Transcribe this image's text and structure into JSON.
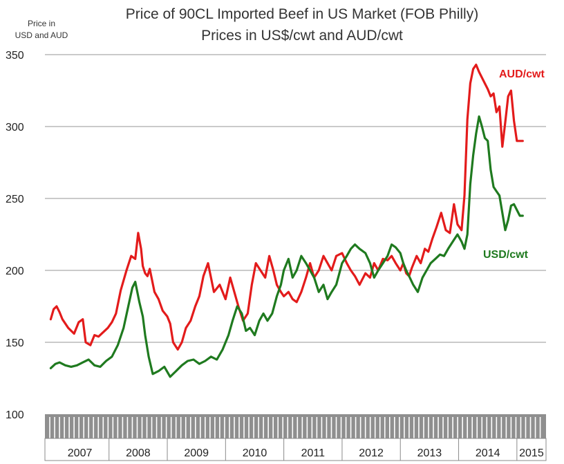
{
  "chart_data": {
    "type": "line",
    "title": "Price of 90CL Imported Beef in US Market (FOB Philly)",
    "subtitle": "Prices in US$/cwt and AUD/cwt",
    "ylabel_line1": "Price in",
    "ylabel_line2": "USD and AUD",
    "ylim": [
      100,
      350
    ],
    "yticks": [
      "100",
      "150",
      "200",
      "250",
      "300",
      "350"
    ],
    "xlim": [
      2006.9,
      2015.5
    ],
    "xtick_labels": [
      "2007",
      "2008",
      "2009",
      "2010",
      "2011",
      "2012",
      "2013",
      "2014",
      "2015"
    ],
    "grid": true,
    "colors": {
      "aud": "#e31b1b",
      "usd": "#1f7a1f",
      "grid": "#aaaaaa",
      "band": "#8f8f8f"
    },
    "series": [
      {
        "name": "AUD/cwt",
        "key": "aud",
        "x": [
          2007.0,
          2007.05,
          2007.1,
          2007.15,
          2007.2,
          2007.3,
          2007.4,
          2007.48,
          2007.55,
          2007.6,
          2007.68,
          2007.75,
          2007.82,
          2007.9,
          2007.98,
          2008.05,
          2008.12,
          2008.2,
          2008.3,
          2008.38,
          2008.45,
          2008.5,
          2008.55,
          2008.58,
          2008.62,
          2008.66,
          2008.7,
          2008.78,
          2008.85,
          2008.92,
          2009.0,
          2009.05,
          2009.1,
          2009.18,
          2009.25,
          2009.32,
          2009.4,
          2009.48,
          2009.55,
          2009.62,
          2009.7,
          2009.8,
          2009.9,
          2010.0,
          2010.08,
          2010.15,
          2010.22,
          2010.3,
          2010.38,
          2010.45,
          2010.52,
          2010.6,
          2010.68,
          2010.75,
          2010.82,
          2010.88,
          2010.95,
          2011.0,
          2011.08,
          2011.15,
          2011.22,
          2011.3,
          2011.38,
          2011.45,
          2011.52,
          2011.6,
          2011.68,
          2011.75,
          2011.82,
          2011.9,
          2012.0,
          2012.08,
          2012.15,
          2012.22,
          2012.3,
          2012.4,
          2012.48,
          2012.55,
          2012.62,
          2012.7,
          2012.78,
          2012.85,
          2012.92,
          2013.0,
          2013.05,
          2013.1,
          2013.15,
          2013.2,
          2013.28,
          2013.35,
          2013.42,
          2013.48,
          2013.55,
          2013.62,
          2013.7,
          2013.78,
          2013.85,
          2013.92,
          2013.98,
          2014.05,
          2014.1,
          2014.15,
          2014.2,
          2014.25,
          2014.3,
          2014.35,
          2014.4,
          2014.45,
          2014.5,
          2014.55,
          2014.6,
          2014.65,
          2014.7,
          2014.75,
          2014.8,
          2014.85,
          2014.9,
          2014.95,
          2015.0,
          2015.05,
          2015.1
        ],
        "values": [
          166,
          173,
          175,
          171,
          166,
          160,
          156,
          164,
          166,
          150,
          148,
          155,
          154,
          157,
          160,
          164,
          170,
          186,
          200,
          210,
          208,
          226,
          215,
          203,
          198,
          196,
          201,
          185,
          180,
          172,
          168,
          163,
          150,
          145,
          150,
          160,
          165,
          175,
          182,
          196,
          205,
          185,
          190,
          180,
          195,
          185,
          175,
          165,
          170,
          190,
          205,
          200,
          195,
          210,
          200,
          190,
          185,
          182,
          185,
          180,
          178,
          185,
          195,
          205,
          195,
          200,
          210,
          205,
          200,
          210,
          212,
          205,
          200,
          196,
          190,
          198,
          195,
          205,
          200,
          208,
          207,
          210,
          205,
          200,
          205,
          198,
          196,
          202,
          210,
          205,
          215,
          213,
          222,
          230,
          240,
          228,
          226,
          246,
          232,
          228,
          252,
          305,
          330,
          340,
          343,
          338,
          334,
          330,
          326,
          321,
          323,
          310,
          314,
          286,
          303,
          321,
          325,
          304,
          290,
          290,
          290
        ]
      },
      {
        "name": "USD/cwt",
        "key": "usd",
        "x": [
          2007.0,
          2007.08,
          2007.15,
          2007.25,
          2007.35,
          2007.45,
          2007.55,
          2007.65,
          2007.75,
          2007.85,
          2007.95,
          2008.05,
          2008.15,
          2008.25,
          2008.33,
          2008.4,
          2008.45,
          2008.52,
          2008.58,
          2008.62,
          2008.68,
          2008.75,
          2008.85,
          2008.95,
          2009.05,
          2009.15,
          2009.25,
          2009.35,
          2009.45,
          2009.55,
          2009.65,
          2009.75,
          2009.85,
          2009.95,
          2010.05,
          2010.12,
          2010.2,
          2010.28,
          2010.35,
          2010.42,
          2010.5,
          2010.58,
          2010.65,
          2010.72,
          2010.8,
          2010.88,
          2010.95,
          2011.0,
          2011.08,
          2011.15,
          2011.22,
          2011.3,
          2011.38,
          2011.45,
          2011.52,
          2011.6,
          2011.68,
          2011.75,
          2011.82,
          2011.9,
          2012.0,
          2012.08,
          2012.15,
          2012.22,
          2012.3,
          2012.4,
          2012.48,
          2012.55,
          2012.62,
          2012.7,
          2012.78,
          2012.85,
          2012.92,
          2013.0,
          2013.05,
          2013.1,
          2013.15,
          2013.22,
          2013.3,
          2013.38,
          2013.45,
          2013.52,
          2013.6,
          2013.68,
          2013.75,
          2013.82,
          2013.9,
          2013.98,
          2014.05,
          2014.1,
          2014.15,
          2014.2,
          2014.25,
          2014.3,
          2014.35,
          2014.4,
          2014.45,
          2014.5,
          2014.55,
          2014.6,
          2014.65,
          2014.7,
          2014.75,
          2014.8,
          2014.85,
          2014.9,
          2014.95,
          2015.0,
          2015.05,
          2015.1
        ],
        "values": [
          132,
          135,
          136,
          134,
          133,
          134,
          136,
          138,
          134,
          133,
          137,
          140,
          148,
          160,
          175,
          188,
          192,
          178,
          168,
          155,
          140,
          128,
          130,
          133,
          126,
          130,
          134,
          137,
          138,
          135,
          137,
          140,
          138,
          145,
          155,
          165,
          175,
          170,
          158,
          160,
          155,
          165,
          170,
          165,
          170,
          182,
          190,
          200,
          208,
          195,
          200,
          210,
          205,
          200,
          195,
          185,
          190,
          180,
          185,
          190,
          205,
          210,
          215,
          218,
          215,
          212,
          205,
          195,
          200,
          205,
          210,
          218,
          216,
          212,
          205,
          200,
          196,
          190,
          185,
          195,
          200,
          205,
          208,
          211,
          210,
          215,
          220,
          225,
          220,
          215,
          225,
          260,
          280,
          295,
          307,
          300,
          292,
          290,
          270,
          258,
          255,
          252,
          240,
          228,
          235,
          245,
          246,
          242,
          238,
          238
        ]
      }
    ]
  }
}
